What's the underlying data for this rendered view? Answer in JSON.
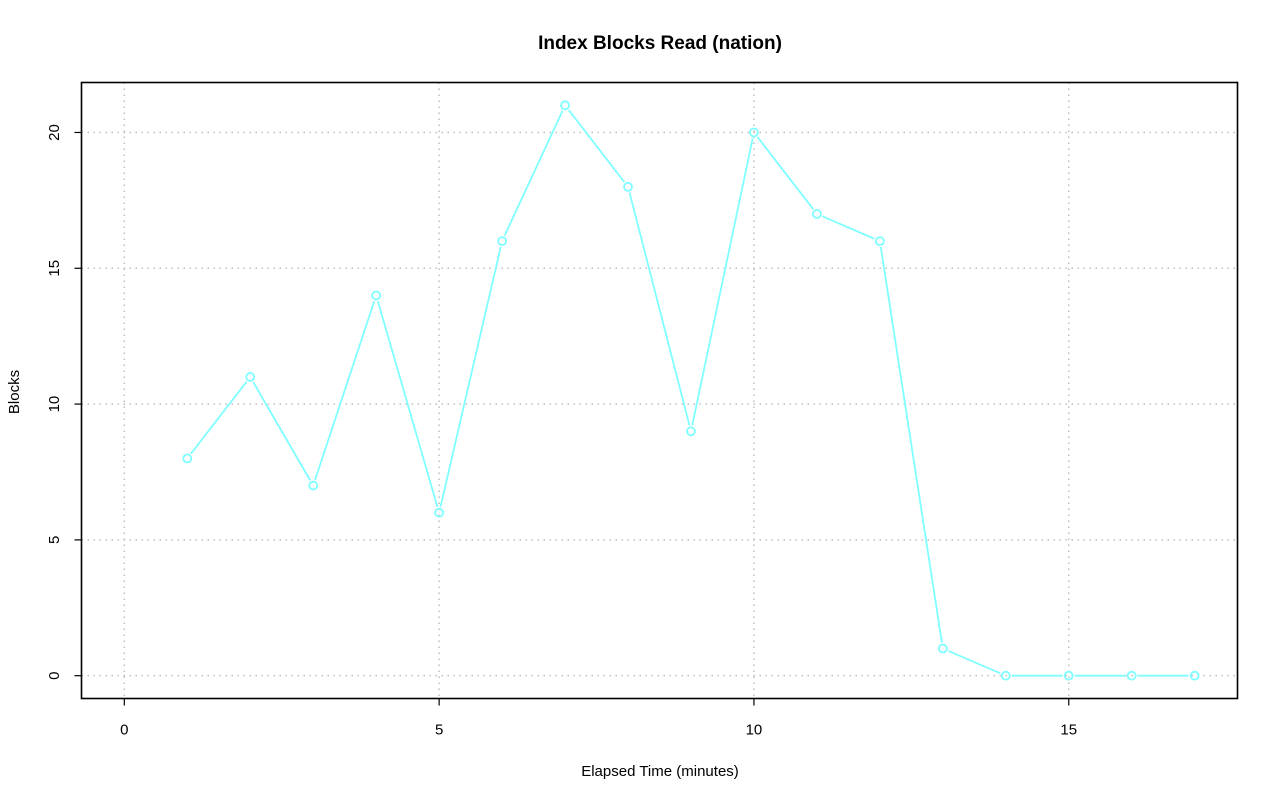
{
  "chart_data": {
    "type": "line",
    "title": "Index Blocks Read (nation)",
    "xlabel": "Elapsed Time (minutes)",
    "ylabel": "Blocks",
    "xlim": [
      0,
      17
    ],
    "ylim": [
      0,
      21
    ],
    "xticks": [
      0,
      5,
      10,
      15
    ],
    "yticks": [
      0,
      5,
      10,
      15,
      20
    ],
    "grid": true,
    "legend": "none",
    "series": [
      {
        "color": "#7fffff",
        "marker": "open-circle",
        "x": [
          1,
          2,
          3,
          4,
          5,
          6,
          7,
          8,
          9,
          10,
          11,
          12,
          13,
          14,
          15,
          16,
          17
        ],
        "y": [
          8,
          11,
          7,
          14,
          6,
          16,
          21,
          18,
          9,
          20,
          17,
          16,
          1,
          0,
          0,
          0,
          0
        ]
      }
    ]
  }
}
